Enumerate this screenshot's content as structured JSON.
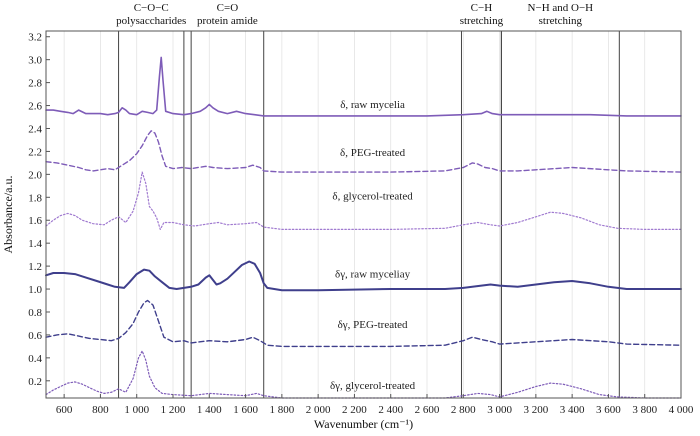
{
  "chart_data": {
    "type": "line",
    "title": "",
    "xlabel": "Wavenumber (cm⁻¹)",
    "ylabel": "Absorbance/a.u.",
    "xlim": [
      500,
      4000
    ],
    "ylim": [
      0.05,
      3.25
    ],
    "xticks": [
      600,
      800,
      1000,
      1200,
      1400,
      1600,
      1800,
      2000,
      2200,
      2400,
      2600,
      2800,
      3000,
      3200,
      3400,
      3600,
      3800,
      4000
    ],
    "xtick_labels": [
      "600",
      "800",
      "1 000",
      "1 200",
      "1 400",
      "1 600",
      "1 800",
      "2 000",
      "2 200",
      "2 400",
      "2 600",
      "2 800",
      "3 000",
      "3 200",
      "3 400",
      "3 600",
      "3 800",
      "4 000"
    ],
    "yticks": [
      0.2,
      0.4,
      0.6,
      0.8,
      1.0,
      1.2,
      1.4,
      1.6,
      1.8,
      2.0,
      2.2,
      2.4,
      2.6,
      2.8,
      3.0,
      3.2
    ],
    "ytick_labels": [
      "0.2",
      "0.4",
      "0.6",
      "0.8",
      "1.0",
      "1.2",
      "1.4",
      "1.6",
      "1.8",
      "2.0",
      "2.2",
      "2.4",
      "2.6",
      "2.8",
      "3.0",
      "3.2"
    ],
    "grid": "vertical",
    "regions": [
      {
        "x": [
          900,
          1260
        ],
        "label_lines": [
          "C−O−C",
          "polysaccharides"
        ]
      },
      {
        "x": [
          1300,
          1700
        ],
        "label_lines": [
          "C=O",
          "protein amide"
        ]
      },
      {
        "x": [
          2790,
          3010
        ],
        "label_lines": [
          "C−H",
          "stretching"
        ]
      },
      {
        "x": [
          3010,
          3660
        ],
        "label_lines": [
          "N−H and O−H",
          "stretching"
        ]
      }
    ],
    "series": [
      {
        "name": "δ, raw mycelia",
        "color": "#7e5cb8",
        "dash": "solid",
        "width": 1.6,
        "label_x": 2300,
        "label_y": 2.58,
        "points": [
          [
            500,
            2.56
          ],
          [
            540,
            2.56
          ],
          [
            580,
            2.55
          ],
          [
            620,
            2.54
          ],
          [
            650,
            2.53
          ],
          [
            680,
            2.56
          ],
          [
            720,
            2.53
          ],
          [
            760,
            2.53
          ],
          [
            800,
            2.53
          ],
          [
            840,
            2.52
          ],
          [
            880,
            2.53
          ],
          [
            900,
            2.54
          ],
          [
            920,
            2.58
          ],
          [
            940,
            2.56
          ],
          [
            960,
            2.53
          ],
          [
            1000,
            2.52
          ],
          [
            1030,
            2.55
          ],
          [
            1060,
            2.54
          ],
          [
            1090,
            2.53
          ],
          [
            1110,
            2.56
          ],
          [
            1125,
            2.85
          ],
          [
            1135,
            3.02
          ],
          [
            1145,
            2.82
          ],
          [
            1160,
            2.55
          ],
          [
            1200,
            2.53
          ],
          [
            1260,
            2.52
          ],
          [
            1300,
            2.53
          ],
          [
            1350,
            2.55
          ],
          [
            1380,
            2.58
          ],
          [
            1400,
            2.61
          ],
          [
            1420,
            2.58
          ],
          [
            1450,
            2.55
          ],
          [
            1500,
            2.53
          ],
          [
            1550,
            2.55
          ],
          [
            1600,
            2.53
          ],
          [
            1650,
            2.52
          ],
          [
            1700,
            2.51
          ],
          [
            1800,
            2.51
          ],
          [
            2000,
            2.51
          ],
          [
            2200,
            2.51
          ],
          [
            2400,
            2.51
          ],
          [
            2600,
            2.51
          ],
          [
            2800,
            2.52
          ],
          [
            2900,
            2.53
          ],
          [
            2930,
            2.55
          ],
          [
            2960,
            2.53
          ],
          [
            3000,
            2.52
          ],
          [
            3100,
            2.52
          ],
          [
            3300,
            2.52
          ],
          [
            3500,
            2.52
          ],
          [
            3700,
            2.51
          ],
          [
            3900,
            2.51
          ],
          [
            4000,
            2.51
          ]
        ]
      },
      {
        "name": "δ, PEG-treated",
        "color": "#7e5cb8",
        "dash": "5,3",
        "width": 1.4,
        "label_x": 2300,
        "label_y": 2.16,
        "points": [
          [
            500,
            2.11
          ],
          [
            560,
            2.1
          ],
          [
            620,
            2.08
          ],
          [
            680,
            2.06
          ],
          [
            720,
            2.04
          ],
          [
            760,
            2.03
          ],
          [
            800,
            2.04
          ],
          [
            840,
            2.05
          ],
          [
            880,
            2.04
          ],
          [
            920,
            2.08
          ],
          [
            960,
            2.12
          ],
          [
            1000,
            2.18
          ],
          [
            1030,
            2.25
          ],
          [
            1060,
            2.34
          ],
          [
            1080,
            2.38
          ],
          [
            1100,
            2.36
          ],
          [
            1120,
            2.28
          ],
          [
            1140,
            2.16
          ],
          [
            1160,
            2.07
          ],
          [
            1200,
            2.05
          ],
          [
            1250,
            2.06
          ],
          [
            1300,
            2.05
          ],
          [
            1380,
            2.07
          ],
          [
            1420,
            2.06
          ],
          [
            1500,
            2.05
          ],
          [
            1600,
            2.06
          ],
          [
            1640,
            2.08
          ],
          [
            1680,
            2.06
          ],
          [
            1700,
            2.03
          ],
          [
            1800,
            2.02
          ],
          [
            2000,
            2.02
          ],
          [
            2400,
            2.02
          ],
          [
            2700,
            2.03
          ],
          [
            2800,
            2.06
          ],
          [
            2850,
            2.1
          ],
          [
            2880,
            2.09
          ],
          [
            2920,
            2.06
          ],
          [
            2960,
            2.05
          ],
          [
            3000,
            2.03
          ],
          [
            3100,
            2.03
          ],
          [
            3200,
            2.04
          ],
          [
            3400,
            2.06
          ],
          [
            3600,
            2.04
          ],
          [
            3700,
            2.03
          ],
          [
            4000,
            2.02
          ]
        ]
      },
      {
        "name": "δ, glycerol-treated",
        "color": "#a07ad0",
        "dash": "1.5,2",
        "width": 1.2,
        "label_x": 2300,
        "label_y": 1.78,
        "points": [
          [
            500,
            1.55
          ],
          [
            540,
            1.6
          ],
          [
            580,
            1.64
          ],
          [
            620,
            1.66
          ],
          [
            660,
            1.64
          ],
          [
            700,
            1.6
          ],
          [
            760,
            1.57
          ],
          [
            820,
            1.56
          ],
          [
            860,
            1.6
          ],
          [
            900,
            1.63
          ],
          [
            940,
            1.58
          ],
          [
            980,
            1.68
          ],
          [
            1010,
            1.84
          ],
          [
            1030,
            2.02
          ],
          [
            1050,
            1.92
          ],
          [
            1070,
            1.72
          ],
          [
            1090,
            1.68
          ],
          [
            1110,
            1.62
          ],
          [
            1130,
            1.52
          ],
          [
            1150,
            1.58
          ],
          [
            1200,
            1.58
          ],
          [
            1260,
            1.56
          ],
          [
            1320,
            1.55
          ],
          [
            1400,
            1.57
          ],
          [
            1450,
            1.58
          ],
          [
            1500,
            1.56
          ],
          [
            1600,
            1.57
          ],
          [
            1660,
            1.58
          ],
          [
            1700,
            1.54
          ],
          [
            1800,
            1.52
          ],
          [
            2000,
            1.52
          ],
          [
            2400,
            1.52
          ],
          [
            2700,
            1.53
          ],
          [
            2800,
            1.56
          ],
          [
            2880,
            1.58
          ],
          [
            2950,
            1.56
          ],
          [
            3000,
            1.55
          ],
          [
            3100,
            1.58
          ],
          [
            3200,
            1.63
          ],
          [
            3280,
            1.67
          ],
          [
            3350,
            1.66
          ],
          [
            3450,
            1.62
          ],
          [
            3550,
            1.56
          ],
          [
            3650,
            1.53
          ],
          [
            3800,
            1.52
          ],
          [
            4000,
            1.52
          ]
        ]
      },
      {
        "name": "δγ, raw myceliay",
        "color": "#3f3f8c",
        "dash": "solid",
        "width": 2.0,
        "label_x": 2300,
        "label_y": 1.1,
        "points": [
          [
            500,
            1.12
          ],
          [
            540,
            1.14
          ],
          [
            600,
            1.14
          ],
          [
            660,
            1.13
          ],
          [
            720,
            1.1
          ],
          [
            780,
            1.07
          ],
          [
            840,
            1.04
          ],
          [
            880,
            1.02
          ],
          [
            930,
            1.01
          ],
          [
            960,
            1.06
          ],
          [
            1000,
            1.13
          ],
          [
            1040,
            1.17
          ],
          [
            1070,
            1.16
          ],
          [
            1100,
            1.11
          ],
          [
            1140,
            1.06
          ],
          [
            1180,
            1.01
          ],
          [
            1220,
            1.0
          ],
          [
            1260,
            1.01
          ],
          [
            1300,
            1.02
          ],
          [
            1340,
            1.04
          ],
          [
            1380,
            1.1
          ],
          [
            1400,
            1.12
          ],
          [
            1420,
            1.08
          ],
          [
            1440,
            1.04
          ],
          [
            1460,
            1.05
          ],
          [
            1500,
            1.09
          ],
          [
            1540,
            1.15
          ],
          [
            1580,
            1.21
          ],
          [
            1620,
            1.24
          ],
          [
            1650,
            1.22
          ],
          [
            1680,
            1.14
          ],
          [
            1700,
            1.05
          ],
          [
            1720,
            1.01
          ],
          [
            1800,
            0.99
          ],
          [
            2000,
            0.99
          ],
          [
            2400,
            1.0
          ],
          [
            2700,
            1.0
          ],
          [
            2800,
            1.01
          ],
          [
            2900,
            1.03
          ],
          [
            2950,
            1.04
          ],
          [
            3000,
            1.03
          ],
          [
            3100,
            1.02
          ],
          [
            3200,
            1.04
          ],
          [
            3300,
            1.06
          ],
          [
            3400,
            1.07
          ],
          [
            3500,
            1.05
          ],
          [
            3600,
            1.02
          ],
          [
            3700,
            1.0
          ],
          [
            4000,
            1.0
          ]
        ]
      },
      {
        "name": "δγ, PEG-treated",
        "color": "#3f3f8c",
        "dash": "5,3",
        "width": 1.4,
        "label_x": 2300,
        "label_y": 0.66,
        "points": [
          [
            500,
            0.58
          ],
          [
            560,
            0.6
          ],
          [
            620,
            0.61
          ],
          [
            680,
            0.59
          ],
          [
            740,
            0.57
          ],
          [
            800,
            0.56
          ],
          [
            860,
            0.55
          ],
          [
            900,
            0.57
          ],
          [
            940,
            0.62
          ],
          [
            980,
            0.7
          ],
          [
            1010,
            0.8
          ],
          [
            1040,
            0.88
          ],
          [
            1060,
            0.9
          ],
          [
            1090,
            0.86
          ],
          [
            1120,
            0.72
          ],
          [
            1150,
            0.58
          ],
          [
            1200,
            0.54
          ],
          [
            1260,
            0.55
          ],
          [
            1300,
            0.53
          ],
          [
            1400,
            0.55
          ],
          [
            1500,
            0.54
          ],
          [
            1600,
            0.56
          ],
          [
            1640,
            0.58
          ],
          [
            1680,
            0.55
          ],
          [
            1720,
            0.51
          ],
          [
            1800,
            0.5
          ],
          [
            2000,
            0.5
          ],
          [
            2400,
            0.5
          ],
          [
            2700,
            0.51
          ],
          [
            2800,
            0.55
          ],
          [
            2850,
            0.58
          ],
          [
            2900,
            0.56
          ],
          [
            2960,
            0.54
          ],
          [
            3000,
            0.52
          ],
          [
            3100,
            0.53
          ],
          [
            3200,
            0.54
          ],
          [
            3400,
            0.56
          ],
          [
            3600,
            0.54
          ],
          [
            3700,
            0.52
          ],
          [
            4000,
            0.51
          ]
        ]
      },
      {
        "name": "δγ, glycerol-treated",
        "color": "#7e5cb8",
        "dash": "1.5,2",
        "width": 1.2,
        "label_x": 2300,
        "label_y": 0.13,
        "points": [
          [
            500,
            0.08
          ],
          [
            540,
            0.12
          ],
          [
            580,
            0.15
          ],
          [
            620,
            0.18
          ],
          [
            660,
            0.19
          ],
          [
            700,
            0.17
          ],
          [
            740,
            0.14
          ],
          [
            780,
            0.11
          ],
          [
            820,
            0.09
          ],
          [
            860,
            0.1
          ],
          [
            900,
            0.13
          ],
          [
            940,
            0.1
          ],
          [
            980,
            0.22
          ],
          [
            1010,
            0.4
          ],
          [
            1030,
            0.46
          ],
          [
            1050,
            0.38
          ],
          [
            1070,
            0.24
          ],
          [
            1100,
            0.14
          ],
          [
            1140,
            0.09
          ],
          [
            1200,
            0.08
          ],
          [
            1300,
            0.07
          ],
          [
            1400,
            0.09
          ],
          [
            1500,
            0.08
          ],
          [
            1600,
            0.07
          ],
          [
            1660,
            0.09
          ],
          [
            1700,
            0.07
          ],
          [
            1800,
            0.05
          ],
          [
            2000,
            0.05
          ],
          [
            2400,
            0.05
          ],
          [
            2700,
            0.05
          ],
          [
            2800,
            0.07
          ],
          [
            2880,
            0.09
          ],
          [
            2950,
            0.08
          ],
          [
            3000,
            0.06
          ],
          [
            3100,
            0.1
          ],
          [
            3200,
            0.15
          ],
          [
            3280,
            0.18
          ],
          [
            3350,
            0.17
          ],
          [
            3450,
            0.13
          ],
          [
            3550,
            0.08
          ],
          [
            3650,
            0.06
          ],
          [
            3800,
            0.05
          ],
          [
            4000,
            0.05
          ]
        ]
      }
    ]
  }
}
